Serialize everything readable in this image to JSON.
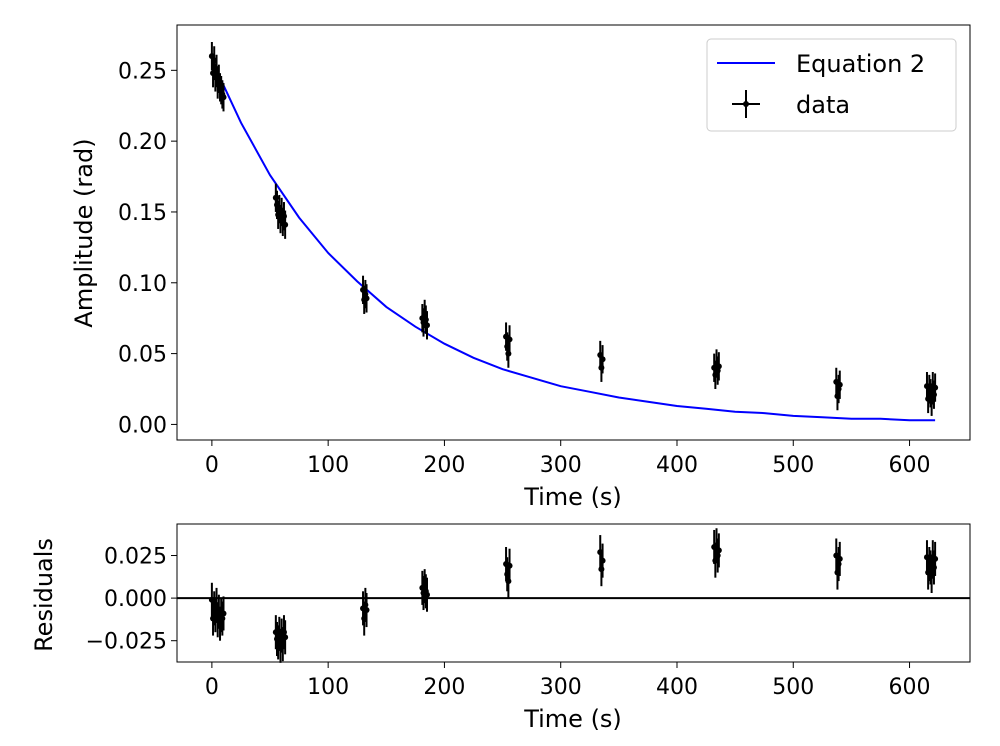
{
  "chart_data": [
    {
      "type": "scatter",
      "panel": "main",
      "xlabel": "Time (s)",
      "ylabel": "Amplitude (rad)",
      "xlim": [
        -30,
        652
      ],
      "ylim": [
        -0.011,
        0.282
      ],
      "xticks": [
        0,
        100,
        200,
        300,
        400,
        500,
        600
      ],
      "xtick_labels": [
        "0",
        "100",
        "200",
        "300",
        "400",
        "500",
        "600"
      ],
      "yticks": [
        0.0,
        0.05,
        0.1,
        0.15,
        0.2,
        0.25
      ],
      "ytick_labels": [
        "0.00",
        "0.05",
        "0.10",
        "0.15",
        "0.20",
        "0.25"
      ],
      "legend_position": "top-right",
      "grid": false,
      "series": [
        {
          "name": "Equation 2",
          "kind": "line",
          "color": "#0000ff",
          "x": [
            0,
            25,
            50,
            75,
            100,
            125,
            150,
            175,
            200,
            225,
            250,
            275,
            300,
            325,
            350,
            375,
            400,
            425,
            450,
            475,
            500,
            525,
            550,
            575,
            600,
            622
          ],
          "y": [
            0.257,
            0.213,
            0.176,
            0.146,
            0.121,
            0.101,
            0.083,
            0.069,
            0.057,
            0.047,
            0.039,
            0.033,
            0.027,
            0.023,
            0.019,
            0.016,
            0.013,
            0.011,
            0.009,
            0.008,
            0.006,
            0.005,
            0.004,
            0.004,
            0.003,
            0.003
          ]
        },
        {
          "name": "data",
          "kind": "errorbar",
          "color": "#000000",
          "x": [
            0,
            1,
            2,
            3,
            4,
            5,
            6,
            7,
            8,
            9,
            10,
            55,
            56,
            57,
            58,
            59,
            60,
            61,
            62,
            63,
            130,
            131,
            132,
            133,
            181,
            182,
            183,
            184,
            185,
            253,
            254,
            255,
            256,
            334,
            335,
            336,
            432,
            433,
            434,
            435,
            436,
            537,
            538,
            539,
            540,
            615,
            616,
            617,
            618,
            619,
            620,
            621,
            622
          ],
          "y": [
            0.26,
            0.248,
            0.257,
            0.245,
            0.251,
            0.24,
            0.244,
            0.238,
            0.236,
            0.233,
            0.231,
            0.16,
            0.155,
            0.148,
            0.152,
            0.145,
            0.15,
            0.143,
            0.147,
            0.141,
            0.095,
            0.088,
            0.092,
            0.089,
            0.075,
            0.072,
            0.078,
            0.074,
            0.07,
            0.062,
            0.055,
            0.05,
            0.06,
            0.049,
            0.04,
            0.046,
            0.04,
            0.035,
            0.043,
            0.038,
            0.041,
            0.03,
            0.02,
            0.025,
            0.028,
            0.027,
            0.018,
            0.025,
            0.022,
            0.016,
            0.027,
            0.021,
            0.026
          ],
          "yerr": 0.01
        }
      ]
    },
    {
      "type": "scatter",
      "panel": "residuals",
      "xlabel": "Time (s)",
      "ylabel": "Residuals",
      "xlim": [
        -30,
        652
      ],
      "ylim": [
        -0.0375,
        0.0435
      ],
      "xticks": [
        0,
        100,
        200,
        300,
        400,
        500,
        600
      ],
      "xtick_labels": [
        "0",
        "100",
        "200",
        "300",
        "400",
        "500",
        "600"
      ],
      "yticks": [
        -0.025,
        0.0,
        0.025
      ],
      "ytick_labels": [
        "−0.025",
        "0.000",
        "0.025"
      ],
      "zero_line": 0.0,
      "grid": false,
      "series": [
        {
          "kind": "errorbar",
          "color": "#000000",
          "x": [
            0,
            1,
            2,
            3,
            4,
            5,
            6,
            7,
            8,
            9,
            10,
            55,
            56,
            57,
            58,
            59,
            60,
            61,
            62,
            63,
            130,
            131,
            132,
            133,
            181,
            182,
            183,
            184,
            185,
            253,
            254,
            255,
            256,
            334,
            335,
            336,
            432,
            433,
            434,
            435,
            436,
            537,
            538,
            539,
            540,
            615,
            616,
            617,
            618,
            619,
            620,
            621,
            622
          ],
          "y": [
            -0.001,
            -0.012,
            -0.006,
            -0.01,
            -0.004,
            -0.013,
            -0.008,
            -0.015,
            -0.01,
            -0.012,
            -0.009,
            -0.02,
            -0.024,
            -0.026,
            -0.021,
            -0.028,
            -0.022,
            -0.027,
            -0.02,
            -0.023,
            -0.006,
            -0.012,
            -0.004,
            -0.007,
            0.006,
            0.003,
            0.007,
            0.004,
            0.002,
            0.02,
            0.014,
            0.01,
            0.019,
            0.027,
            0.017,
            0.022,
            0.03,
            0.022,
            0.031,
            0.025,
            0.028,
            0.025,
            0.015,
            0.02,
            0.023,
            0.024,
            0.015,
            0.02,
            0.018,
            0.013,
            0.024,
            0.018,
            0.023
          ],
          "yerr": 0.01
        }
      ]
    }
  ]
}
